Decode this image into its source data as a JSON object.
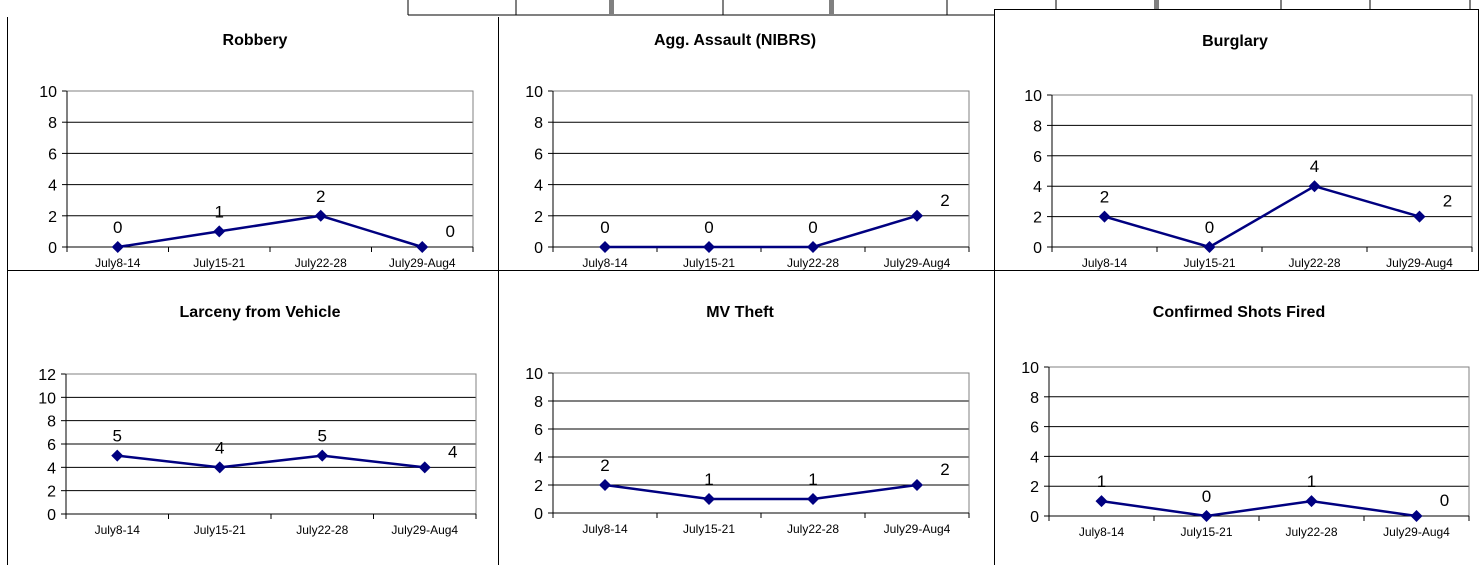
{
  "chart_data": [
    {
      "type": "line",
      "title": "Robbery",
      "categories": [
        "July8-14",
        "July15-21",
        "July22-28",
        "July29-Aug4"
      ],
      "values": [
        0,
        1,
        2,
        0
      ],
      "ylim": [
        0,
        10
      ],
      "yticks": [
        0,
        2,
        4,
        6,
        8,
        10
      ],
      "grid": true,
      "line_color": "#000080"
    },
    {
      "type": "line",
      "title": "Agg. Assault (NIBRS)",
      "categories": [
        "July8-14",
        "July15-21",
        "July22-28",
        "July29-Aug4"
      ],
      "values": [
        0,
        0,
        0,
        2
      ],
      "ylim": [
        0,
        10
      ],
      "yticks": [
        0,
        2,
        4,
        6,
        8,
        10
      ],
      "grid": true,
      "line_color": "#000080"
    },
    {
      "type": "line",
      "title": "Burglary",
      "categories": [
        "July8-14",
        "July15-21",
        "July22-28",
        "July29-Aug4"
      ],
      "values": [
        2,
        0,
        4,
        2
      ],
      "ylim": [
        0,
        10
      ],
      "yticks": [
        0,
        2,
        4,
        6,
        8,
        10
      ],
      "grid": true,
      "line_color": "#000080"
    },
    {
      "type": "line",
      "title": "Larceny from Vehicle",
      "categories": [
        "July8-14",
        "July15-21",
        "July22-28",
        "July29-Aug4"
      ],
      "values": [
        5,
        4,
        5,
        4
      ],
      "ylim": [
        0,
        12
      ],
      "yticks": [
        0,
        2,
        4,
        6,
        8,
        10,
        12
      ],
      "grid": true,
      "line_color": "#000080"
    },
    {
      "type": "line",
      "title": "MV Theft",
      "categories": [
        "July8-14",
        "July15-21",
        "July22-28",
        "July29-Aug4"
      ],
      "values": [
        2,
        1,
        1,
        2
      ],
      "ylim": [
        0,
        10
      ],
      "yticks": [
        0,
        2,
        4,
        6,
        8,
        10
      ],
      "grid": true,
      "line_color": "#000080"
    },
    {
      "type": "line",
      "title": "Confirmed Shots Fired",
      "categories": [
        "July8-14",
        "July15-21",
        "July22-28",
        "July29-Aug4"
      ],
      "values": [
        1,
        0,
        1,
        0
      ],
      "ylim": [
        0,
        10
      ],
      "yticks": [
        0,
        2,
        4,
        6,
        8,
        10
      ],
      "grid": true,
      "line_color": "#000080"
    }
  ]
}
